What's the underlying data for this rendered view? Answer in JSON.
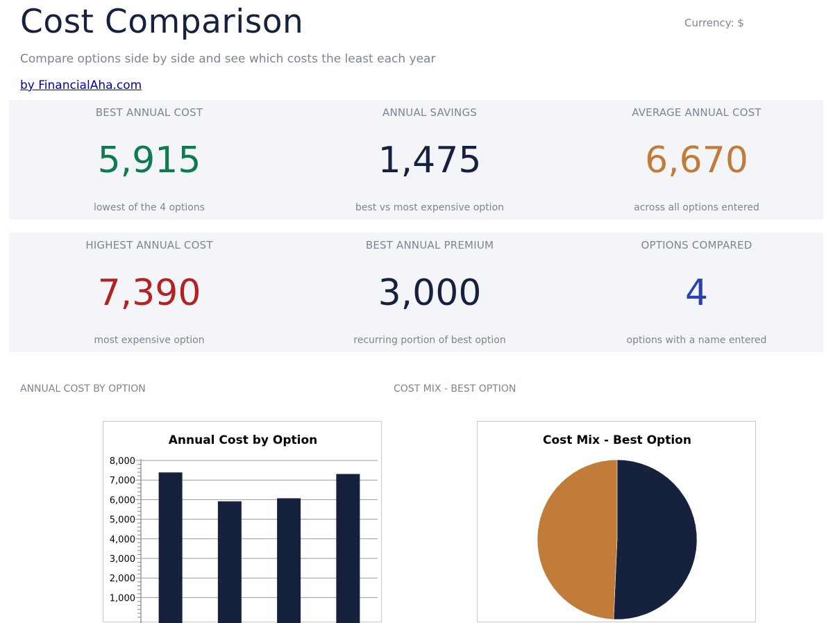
{
  "header": {
    "title": "Cost Comparison",
    "currency": "Currency: $",
    "subtitle": "Compare options side by side and see which costs the least each year",
    "byline": "by FinancialAha.com"
  },
  "kpis_row1": [
    {
      "label": "BEST ANNUAL COST",
      "value": "5,915",
      "note": "lowest of the 4 options",
      "color": "#0e7a4e"
    },
    {
      "label": "ANNUAL SAVINGS",
      "value": "1,475",
      "note": "best vs most expensive option",
      "color": "#16213e"
    },
    {
      "label": "AVERAGE ANNUAL COST",
      "value": "6,670",
      "note": "across all options entered",
      "color": "#c27c3a"
    }
  ],
  "kpis_row2": [
    {
      "label": "HIGHEST ANNUAL COST",
      "value": "7,390",
      "note": "most expensive option",
      "color": "#b22222"
    },
    {
      "label": "BEST ANNUAL PREMIUM",
      "value": "3,000",
      "note": "recurring portion of best option",
      "color": "#16213e"
    },
    {
      "label": "OPTIONS COMPARED",
      "value": "4",
      "note": "options with a name entered",
      "color": "#2541b2"
    }
  ],
  "sections": {
    "bar_label": "ANNUAL COST BY OPTION",
    "pie_label": "COST MIX - BEST OPTION"
  },
  "chart_data": [
    {
      "type": "bar",
      "title": "Annual Cost by Option",
      "values": [
        7390,
        5915,
        6070,
        7310
      ],
      "ylim": [
        0,
        8000
      ],
      "yticks": [
        "1,000",
        "2,000",
        "3,000",
        "4,000",
        "5,000",
        "6,000",
        "7,000",
        "8,000"
      ],
      "grid": true,
      "color": "#16213e"
    },
    {
      "type": "pie",
      "title": "Cost Mix - Best Option",
      "values": [
        50.7,
        49.3
      ],
      "colors": [
        "#16213e",
        "#c27c3a"
      ]
    }
  ]
}
